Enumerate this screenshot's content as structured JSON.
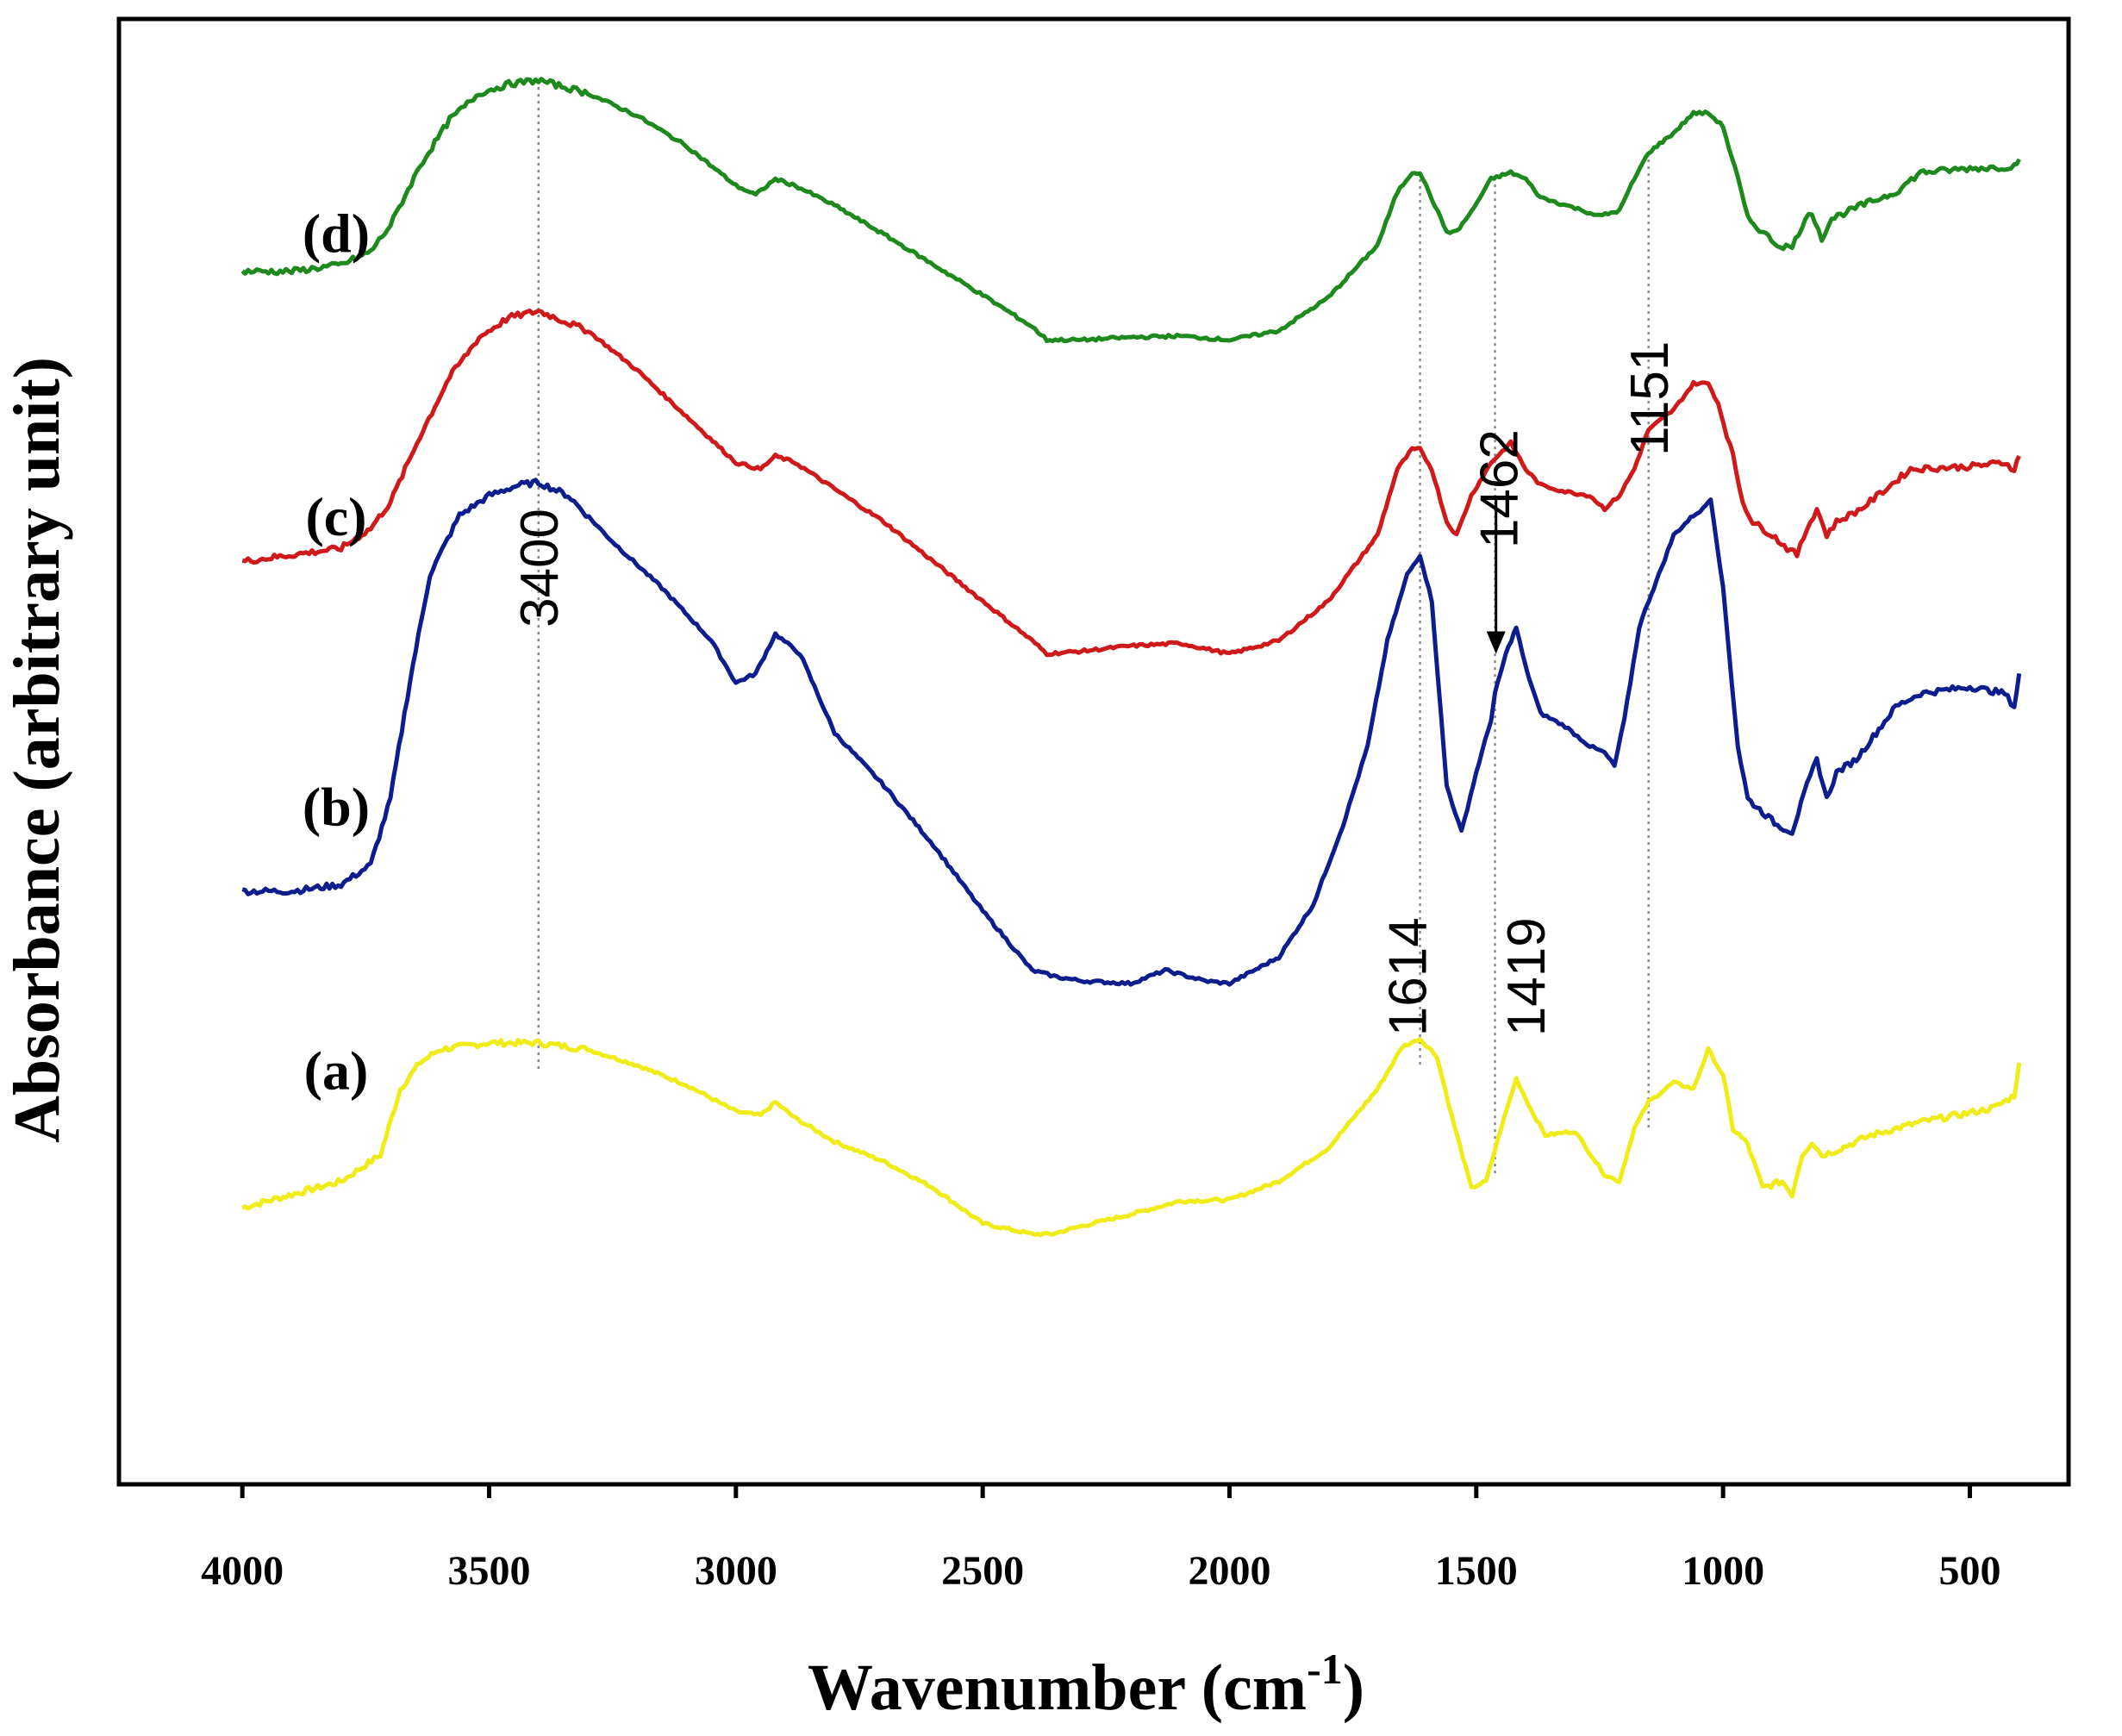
{
  "chart_data": {
    "type": "line",
    "title": "",
    "xlabel": "Wavenumber (cm",
    "xlabel_sup": "-1",
    "xlabel_close": ")",
    "ylabel": "Absorbance (arbitrary unit)",
    "xlim": [
      4250,
      300
    ],
    "xticks": [
      {
        "value": 4000,
        "label": "4000"
      },
      {
        "value": 3500,
        "label": "3500"
      },
      {
        "value": 3000,
        "label": "3000"
      },
      {
        "value": 2500,
        "label": "2500"
      },
      {
        "value": 2000,
        "label": "2000"
      },
      {
        "value": 1500,
        "label": "1500"
      },
      {
        "value": 1000,
        "label": "1000"
      },
      {
        "value": 500,
        "label": "500"
      }
    ],
    "y_units": "arbitrary",
    "ylim": [
      0,
      100
    ],
    "grid": false,
    "peak_lines": [
      3400,
      1614,
      1462,
      1151
    ],
    "peak_labels": [
      {
        "text": "3400",
        "x": 3400,
        "y": 57
      },
      {
        "text": "1614",
        "x": 1640,
        "y": 26
      },
      {
        "text": "1419",
        "x": 1400,
        "y": 26
      },
      {
        "text": "1462",
        "x": 1455,
        "y": 63
      },
      {
        "text": "1151",
        "x": 1150,
        "y": 70
      }
    ],
    "arrow": {
      "from_x": 1460,
      "from_y": 67,
      "to_y": 55
    },
    "series": [
      {
        "name": "(a)",
        "color": "#f0ec1a",
        "label_pos": {
          "x": 3810,
          "y": 22
        },
        "points": [
          [
            4000,
            13
          ],
          [
            3900,
            14
          ],
          [
            3800,
            15
          ],
          [
            3720,
            17
          ],
          [
            3680,
            22
          ],
          [
            3640,
            24
          ],
          [
            3600,
            25
          ],
          [
            3500,
            25.5
          ],
          [
            3400,
            25.5
          ],
          [
            3300,
            25
          ],
          [
            3200,
            23.8
          ],
          [
            3100,
            22.3
          ],
          [
            3000,
            20.3
          ],
          [
            2950,
            20
          ],
          [
            2920,
            21
          ],
          [
            2880,
            19.8
          ],
          [
            2800,
            18
          ],
          [
            2700,
            16.5
          ],
          [
            2600,
            14.5
          ],
          [
            2500,
            11.8
          ],
          [
            2400,
            11
          ],
          [
            2360,
            11
          ],
          [
            2300,
            11.6
          ],
          [
            2200,
            12.5
          ],
          [
            2100,
            13.5
          ],
          [
            2000,
            13.6
          ],
          [
            1900,
            15
          ],
          [
            1800,
            17.5
          ],
          [
            1700,
            22
          ],
          [
            1650,
            25.2
          ],
          [
            1614,
            25.8
          ],
          [
            1580,
            24.5
          ],
          [
            1550,
            20
          ],
          [
            1510,
            14.5
          ],
          [
            1480,
            15
          ],
          [
            1450,
            19
          ],
          [
            1419,
            22.8
          ],
          [
            1390,
            20.5
          ],
          [
            1360,
            18.5
          ],
          [
            1300,
            18.8
          ],
          [
            1240,
            15.5
          ],
          [
            1210,
            15
          ],
          [
            1180,
            19
          ],
          [
            1151,
            21
          ],
          [
            1100,
            22.5
          ],
          [
            1060,
            22
          ],
          [
            1030,
            25
          ],
          [
            1000,
            23
          ],
          [
            980,
            19
          ],
          [
            950,
            17.8
          ],
          [
            920,
            14.5
          ],
          [
            880,
            15
          ],
          [
            860,
            14
          ],
          [
            840,
            17
          ],
          [
            820,
            18
          ],
          [
            800,
            17
          ],
          [
            780,
            17.2
          ],
          [
            700,
            18.5
          ],
          [
            600,
            19.5
          ],
          [
            500,
            20.2
          ],
          [
            450,
            20.6
          ],
          [
            410,
            21.5
          ],
          [
            400,
            24
          ]
        ]
      },
      {
        "name": "(b)",
        "color": "#0c1e8e",
        "label_pos": {
          "x": 3810,
          "y": 42
        },
        "points": [
          [
            4000,
            37
          ],
          [
            3900,
            37
          ],
          [
            3800,
            37.5
          ],
          [
            3740,
            39
          ],
          [
            3700,
            44
          ],
          [
            3660,
            53
          ],
          [
            3620,
            61
          ],
          [
            3560,
            65.5
          ],
          [
            3500,
            67
          ],
          [
            3440,
            67.8
          ],
          [
            3400,
            68
          ],
          [
            3340,
            67
          ],
          [
            3250,
            63.5
          ],
          [
            3150,
            60
          ],
          [
            3050,
            56
          ],
          [
            3000,
            52.8
          ],
          [
            2960,
            53.5
          ],
          [
            2920,
            56.5
          ],
          [
            2870,
            55
          ],
          [
            2800,
            49
          ],
          [
            2700,
            45
          ],
          [
            2600,
            40.5
          ],
          [
            2500,
            35.5
          ],
          [
            2400,
            31
          ],
          [
            2350,
            30.5
          ],
          [
            2300,
            30.2
          ],
          [
            2200,
            30
          ],
          [
            2130,
            31
          ],
          [
            2050,
            30.2
          ],
          [
            2000,
            30
          ],
          [
            1900,
            32
          ],
          [
            1830,
            36
          ],
          [
            1770,
            42
          ],
          [
            1720,
            48
          ],
          [
            1680,
            56
          ],
          [
            1640,
            61
          ],
          [
            1614,
            62.5
          ],
          [
            1590,
            59
          ],
          [
            1560,
            45
          ],
          [
            1530,
            41.5
          ],
          [
            1500,
            46
          ],
          [
            1470,
            50
          ],
          [
            1462,
            52
          ],
          [
            1440,
            55
          ],
          [
            1419,
            57
          ],
          [
            1400,
            54
          ],
          [
            1370,
            50.5
          ],
          [
            1320,
            49.5
          ],
          [
            1270,
            48
          ],
          [
            1240,
            47.5
          ],
          [
            1220,
            46.5
          ],
          [
            1200,
            50
          ],
          [
            1170,
            57
          ],
          [
            1151,
            59
          ],
          [
            1130,
            61
          ],
          [
            1100,
            64
          ],
          [
            1060,
            65.5
          ],
          [
            1040,
            66
          ],
          [
            1025,
            66.8
          ],
          [
            1000,
            60
          ],
          [
            970,
            48
          ],
          [
            950,
            44
          ],
          [
            920,
            43
          ],
          [
            890,
            42
          ],
          [
            860,
            41.5
          ],
          [
            830,
            45
          ],
          [
            810,
            47
          ],
          [
            790,
            44
          ],
          [
            770,
            46
          ],
          [
            730,
            47
          ],
          [
            690,
            49
          ],
          [
            650,
            51
          ],
          [
            600,
            52
          ],
          [
            500,
            52.5
          ],
          [
            430,
            52
          ],
          [
            410,
            51
          ],
          [
            400,
            53.5
          ]
        ]
      },
      {
        "name": "(c)",
        "color": "#cf1a1c",
        "label_pos": {
          "x": 3810,
          "y": 64
        },
        "points": [
          [
            4000,
            62
          ],
          [
            3900,
            62.5
          ],
          [
            3800,
            63
          ],
          [
            3740,
            64.5
          ],
          [
            3700,
            66.5
          ],
          [
            3640,
            71.5
          ],
          [
            3580,
            76
          ],
          [
            3520,
            79
          ],
          [
            3460,
            80.5
          ],
          [
            3400,
            81
          ],
          [
            3300,
            79.5
          ],
          [
            3200,
            76.5
          ],
          [
            3100,
            73
          ],
          [
            3000,
            69.5
          ],
          [
            2950,
            69
          ],
          [
            2920,
            70
          ],
          [
            2880,
            69.5
          ],
          [
            2800,
            67.5
          ],
          [
            2700,
            65
          ],
          [
            2600,
            62
          ],
          [
            2500,
            59
          ],
          [
            2400,
            56
          ],
          [
            2370,
            55
          ],
          [
            2300,
            55.2
          ],
          [
            2200,
            55.6
          ],
          [
            2100,
            55.8
          ],
          [
            2000,
            55
          ],
          [
            1900,
            56
          ],
          [
            1800,
            59
          ],
          [
            1700,
            64
          ],
          [
            1660,
            69
          ],
          [
            1630,
            70.5
          ],
          [
            1614,
            70.5
          ],
          [
            1590,
            69
          ],
          [
            1560,
            65
          ],
          [
            1540,
            64
          ],
          [
            1510,
            67
          ],
          [
            1470,
            69.5
          ],
          [
            1430,
            71
          ],
          [
            1400,
            69
          ],
          [
            1370,
            67.8
          ],
          [
            1320,
            67.3
          ],
          [
            1270,
            67
          ],
          [
            1240,
            66
          ],
          [
            1210,
            67
          ],
          [
            1180,
            69
          ],
          [
            1151,
            72
          ],
          [
            1100,
            73.5
          ],
          [
            1060,
            75.5
          ],
          [
            1030,
            75.5
          ],
          [
            1010,
            74
          ],
          [
            980,
            70
          ],
          [
            960,
            66.5
          ],
          [
            940,
            65
          ],
          [
            900,
            64
          ],
          [
            870,
            63
          ],
          [
            850,
            62.5
          ],
          [
            830,
            64.5
          ],
          [
            810,
            66
          ],
          [
            790,
            64
          ],
          [
            770,
            65
          ],
          [
            720,
            66
          ],
          [
            670,
            67.5
          ],
          [
            620,
            69
          ],
          [
            500,
            69.2
          ],
          [
            430,
            69.5
          ],
          [
            410,
            69
          ],
          [
            400,
            70
          ]
        ]
      },
      {
        "name": "(d)",
        "color": "#1e8a1e",
        "label_pos": {
          "x": 3810,
          "y": 85.5
        },
        "points": [
          [
            4000,
            84
          ],
          [
            3900,
            84
          ],
          [
            3800,
            84.5
          ],
          [
            3740,
            85.5
          ],
          [
            3700,
            87.5
          ],
          [
            3640,
            92
          ],
          [
            3580,
            95.5
          ],
          [
            3520,
            97.5
          ],
          [
            3460,
            98.2
          ],
          [
            3400,
            98.5
          ],
          [
            3300,
            97.5
          ],
          [
            3200,
            95.8
          ],
          [
            3100,
            93.5
          ],
          [
            3000,
            90.5
          ],
          [
            2960,
            89.8
          ],
          [
            2920,
            91
          ],
          [
            2880,
            90.5
          ],
          [
            2800,
            89
          ],
          [
            2700,
            86.8
          ],
          [
            2600,
            84.5
          ],
          [
            2500,
            82.2
          ],
          [
            2400,
            79.8
          ],
          [
            2370,
            78.8
          ],
          [
            2300,
            78.8
          ],
          [
            2200,
            79
          ],
          [
            2100,
            79.1
          ],
          [
            2000,
            78.8
          ],
          [
            1900,
            79.5
          ],
          [
            1800,
            82
          ],
          [
            1700,
            86
          ],
          [
            1660,
            90
          ],
          [
            1630,
            91.5
          ],
          [
            1614,
            91.5
          ],
          [
            1590,
            89.5
          ],
          [
            1560,
            87
          ],
          [
            1540,
            87
          ],
          [
            1510,
            88.5
          ],
          [
            1470,
            91
          ],
          [
            1430,
            91.5
          ],
          [
            1400,
            91
          ],
          [
            1370,
            89.6
          ],
          [
            1300,
            88.8
          ],
          [
            1250,
            88.2
          ],
          [
            1210,
            88.6
          ],
          [
            1180,
            91
          ],
          [
            1151,
            93
          ],
          [
            1100,
            94.5
          ],
          [
            1060,
            96
          ],
          [
            1030,
            96
          ],
          [
            1000,
            95
          ],
          [
            970,
            91
          ],
          [
            950,
            88
          ],
          [
            920,
            87
          ],
          [
            890,
            86
          ],
          [
            860,
            85.8
          ],
          [
            840,
            87.5
          ],
          [
            820,
            88.5
          ],
          [
            800,
            86.5
          ],
          [
            780,
            88
          ],
          [
            720,
            89
          ],
          [
            650,
            90
          ],
          [
            600,
            91.5
          ],
          [
            500,
            91.8
          ],
          [
            430,
            91.9
          ],
          [
            410,
            92
          ],
          [
            400,
            92.5
          ]
        ]
      }
    ]
  }
}
